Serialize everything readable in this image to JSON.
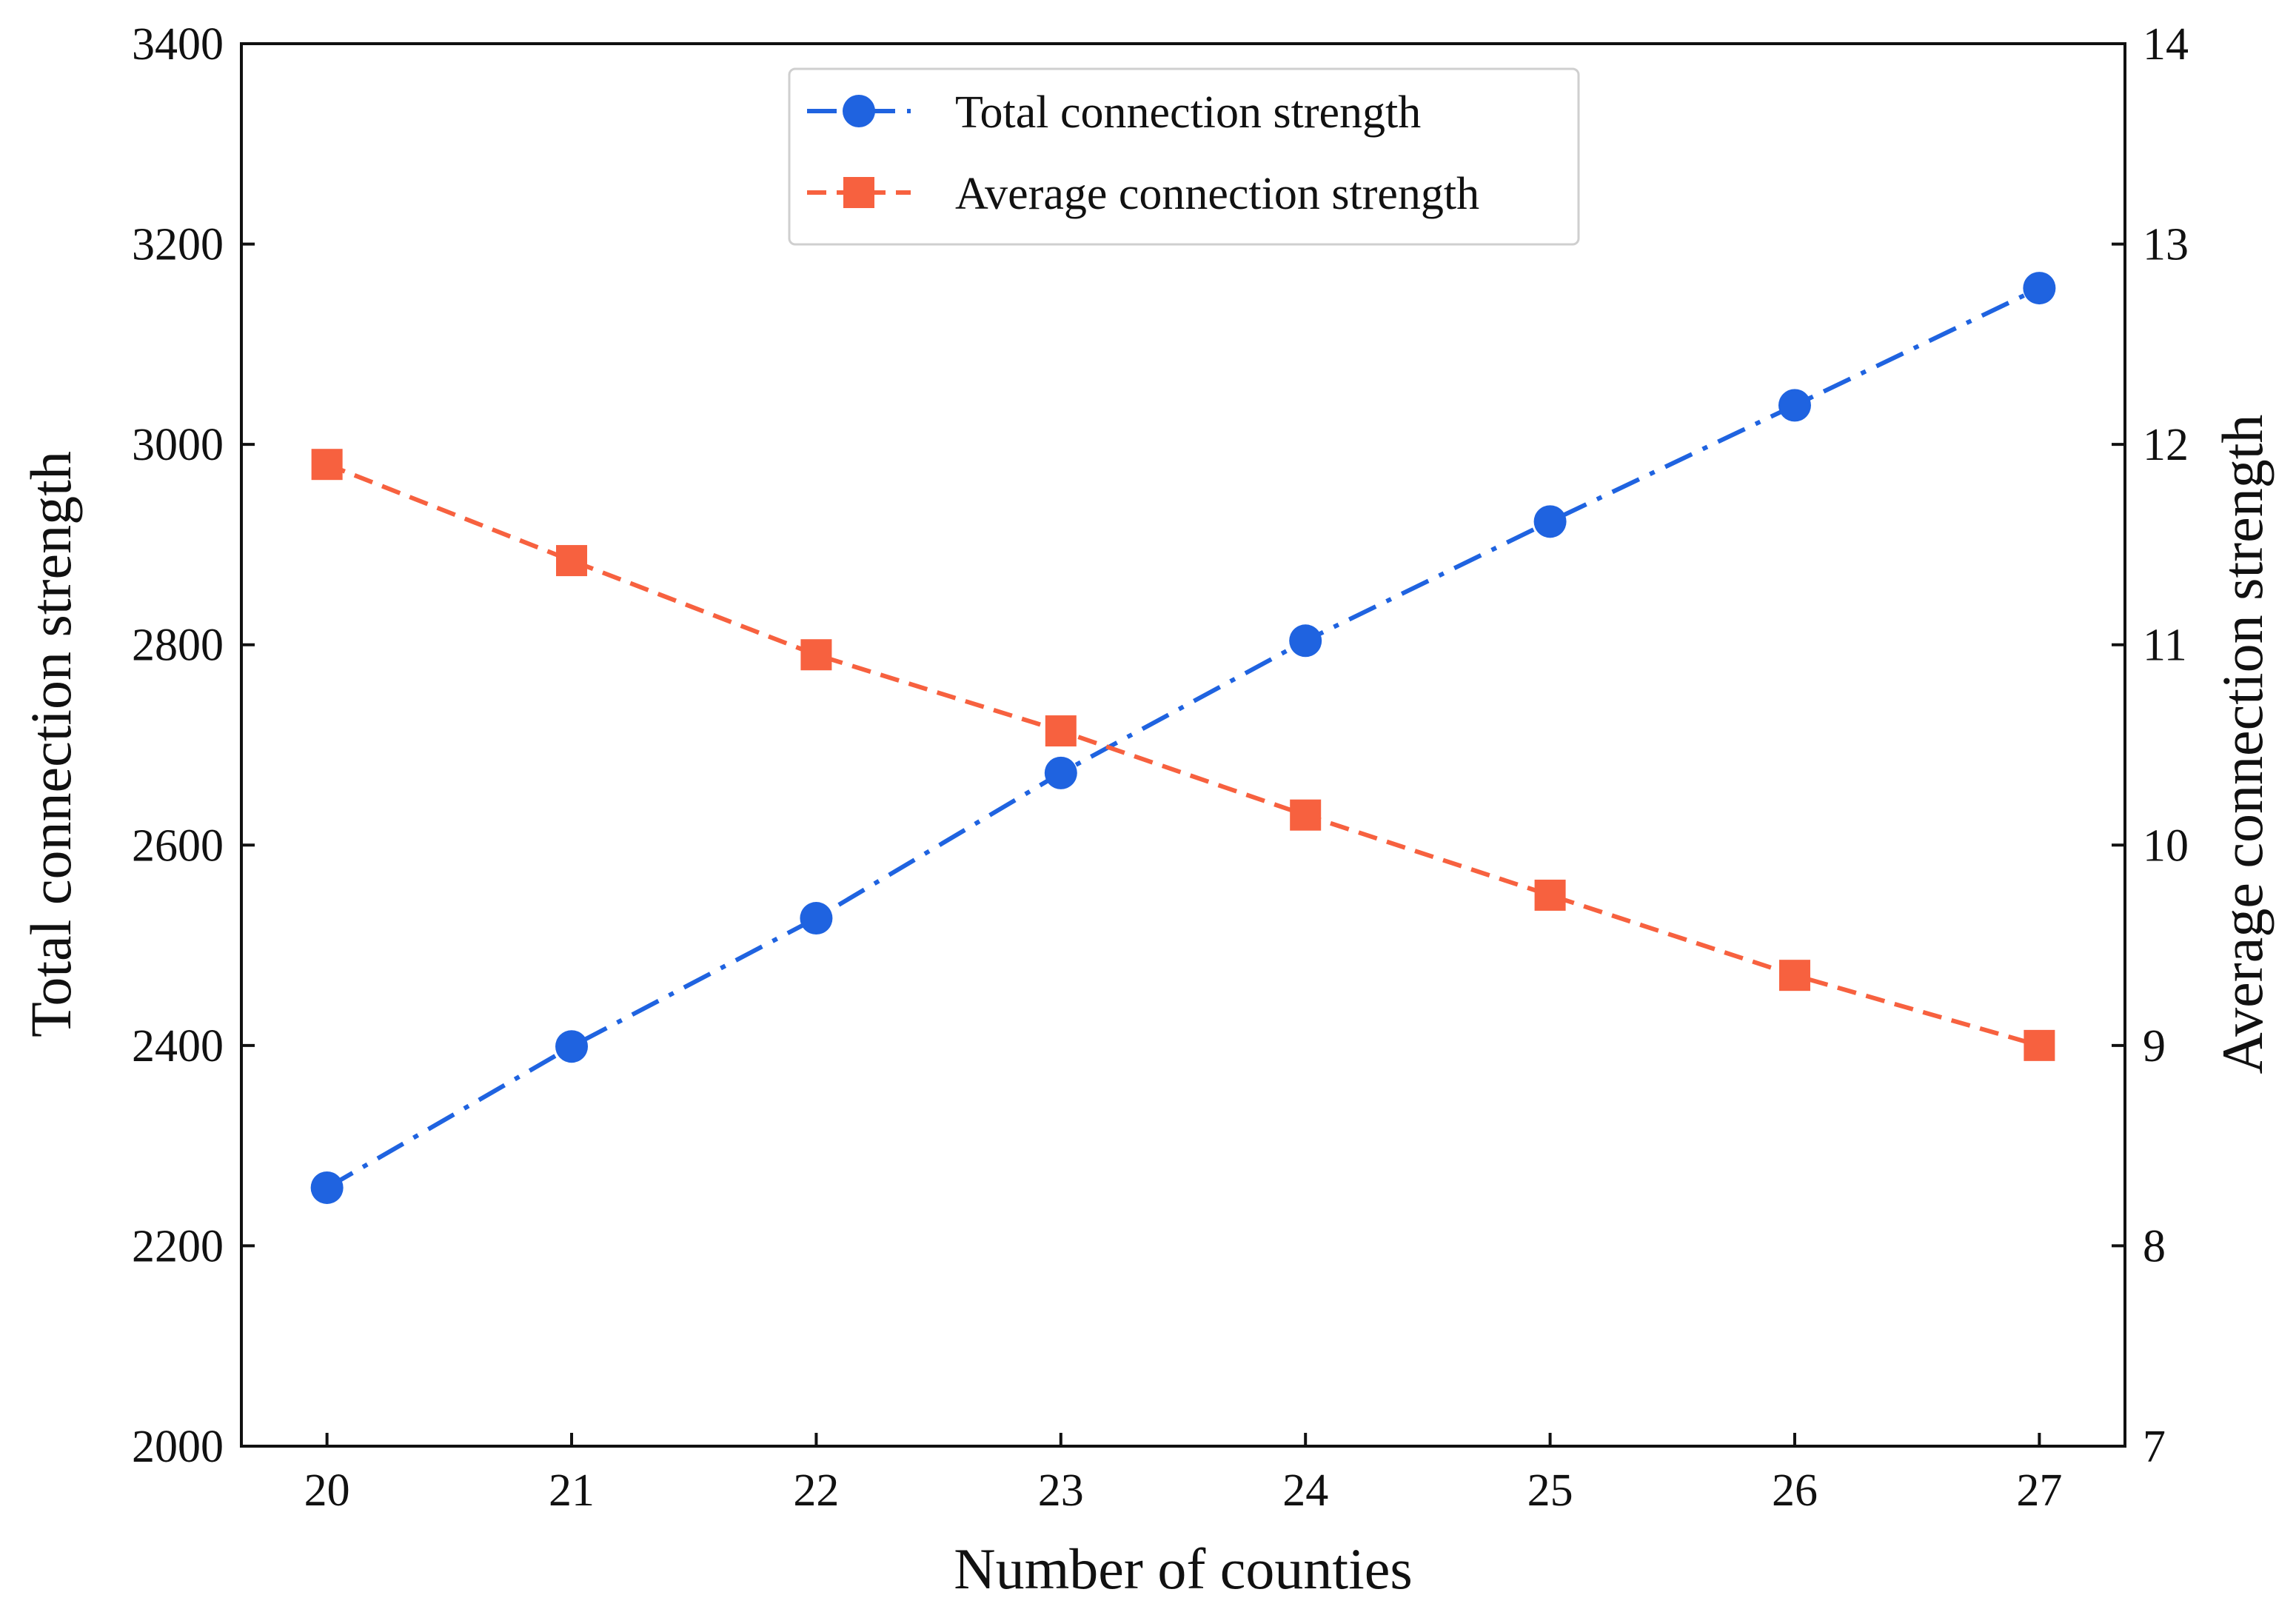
{
  "chart_data": {
    "type": "line",
    "title": "",
    "x": [
      20,
      21,
      22,
      23,
      24,
      25,
      26,
      27
    ],
    "xlabel": "Number of counties",
    "xlim": [
      19.65,
      27.35
    ],
    "x_ticks": [
      "20",
      "21",
      "22",
      "23",
      "24",
      "25",
      "26",
      "27"
    ],
    "ylabel_left": "Total connection strength",
    "ylim_left": [
      2000,
      3400
    ],
    "y_ticks_left": [
      "2000",
      "2200",
      "2400",
      "2600",
      "2800",
      "3000",
      "3200",
      "3400"
    ],
    "ylabel_right": "Average connection strength",
    "ylim_right": [
      7,
      14
    ],
    "y_ticks_right": [
      "7",
      "8",
      "9",
      "10",
      "11",
      "12",
      "13",
      "14"
    ],
    "grid": false,
    "legend_position": "top-center",
    "series": [
      {
        "name": "Total connection strength",
        "axis": "left",
        "values": [
          2258,
          2399,
          2527,
          2672,
          2804,
          2923,
          3039,
          3156
        ],
        "color": "#1f63e0",
        "marker": "circle",
        "line_style": "dash-dot"
      },
      {
        "name": "Average connection strength",
        "axis": "right",
        "values": [
          11.9,
          11.42,
          10.95,
          10.57,
          10.15,
          9.75,
          9.35,
          9.0
        ],
        "color": "#f7613f",
        "marker": "square",
        "line_style": "dashed"
      }
    ]
  }
}
